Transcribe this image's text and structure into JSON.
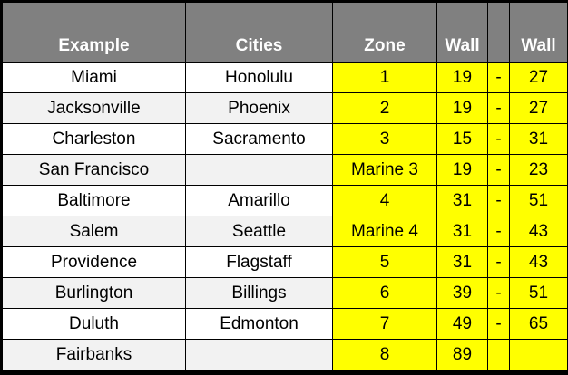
{
  "headers": {
    "example": "Example",
    "cities": "Cities",
    "zone": "Zone",
    "wall1": "Wall",
    "dash": "",
    "wall2": "Wall"
  },
  "rows": [
    {
      "example": "Miami",
      "city": "Honolulu",
      "zone": "1",
      "wall_min": "19",
      "dash": "-",
      "wall_max": "27"
    },
    {
      "example": "Jacksonville",
      "city": "Phoenix",
      "zone": "2",
      "wall_min": "19",
      "dash": "-",
      "wall_max": "27"
    },
    {
      "example": "Charleston",
      "city": "Sacramento",
      "zone": "3",
      "wall_min": "15",
      "dash": "-",
      "wall_max": "31"
    },
    {
      "example": "San Francisco",
      "city": "",
      "zone": "Marine 3",
      "wall_min": "19",
      "dash": "-",
      "wall_max": "23"
    },
    {
      "example": "Baltimore",
      "city": "Amarillo",
      "zone": "4",
      "wall_min": "31",
      "dash": "-",
      "wall_max": "51"
    },
    {
      "example": "Salem",
      "city": "Seattle",
      "zone": "Marine 4",
      "wall_min": "31",
      "dash": "-",
      "wall_max": "43"
    },
    {
      "example": "Providence",
      "city": "Flagstaff",
      "zone": "5",
      "wall_min": "31",
      "dash": "-",
      "wall_max": "43"
    },
    {
      "example": "Burlington",
      "city": "Billings",
      "zone": "6",
      "wall_min": "39",
      "dash": "-",
      "wall_max": "51"
    },
    {
      "example": "Duluth",
      "city": "Edmonton",
      "zone": "7",
      "wall_min": "49",
      "dash": "-",
      "wall_max": "65"
    },
    {
      "example": "Fairbanks",
      "city": "",
      "zone": "8",
      "wall_min": "89",
      "dash": "",
      "wall_max": ""
    }
  ],
  "colors": {
    "header_bg": "#808080",
    "header_text": "#ffffff",
    "highlight": "#ffff00",
    "row_alt": "#f2f2f2",
    "border": "#000000"
  }
}
